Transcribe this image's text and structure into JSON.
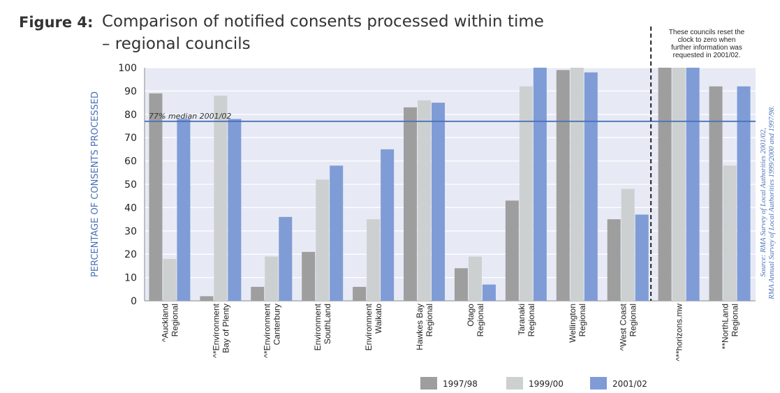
{
  "figure": {
    "label": "Figure 4:",
    "title_line1": "Comparison of notified consents processed within time",
    "title_line2": "– regional councils"
  },
  "colors": {
    "plot_bg": "#e7eaf5",
    "grid": "#ffffff",
    "s1997": "#9e9e9e",
    "s1999": "#cdd0d0",
    "s2001": "#7f9cd6",
    "median_line": "#4a72b8",
    "axis_label": "#4a72b8"
  },
  "annotation": {
    "median_label": "77% median 2001/02",
    "note_lines": [
      "These councils reset the",
      "clock to zero when",
      "further information was",
      "requested in 2001/02."
    ],
    "source_lines": [
      "Source: RMA Survey of Local Authorities 2001/02,",
      "RMA Annual Survey of Local Authorities 1999/2000 and 1997/98."
    ]
  },
  "chart_data": {
    "type": "bar",
    "title": "Comparison of notified consents processed within time – regional councils",
    "ylabel": "PERCENTAGE OF CONSENTS PROCESSED",
    "xlabel": "",
    "ylim": [
      0,
      100
    ],
    "yticks": [
      0,
      10,
      20,
      30,
      40,
      50,
      60,
      70,
      80,
      90,
      100
    ],
    "grid": true,
    "legend_position": "bottom",
    "median": 77,
    "categories": [
      [
        "^Auckland",
        "Regional"
      ],
      [
        "^*Environment",
        "Bay of Plenty"
      ],
      [
        "^*Environment",
        "Canterbury"
      ],
      [
        "Environment",
        "SouthLand"
      ],
      [
        "Environment",
        "Waikato"
      ],
      [
        "Hawkes Bay",
        "Regional"
      ],
      [
        "Otago",
        "Regional"
      ],
      [
        "Taranaki",
        "Regional"
      ],
      [
        "Wellington",
        "Regional"
      ],
      [
        "^West Coast",
        "Regional"
      ],
      [
        "^**horizons.mw"
      ],
      [
        "**NorthLand",
        "Regional"
      ]
    ],
    "series": [
      {
        "name": "1997/98",
        "values": [
          89,
          2,
          6,
          21,
          6,
          83,
          14,
          43,
          99,
          35,
          100,
          92
        ]
      },
      {
        "name": "1999/00",
        "values": [
          18,
          88,
          19,
          52,
          35,
          86,
          19,
          92,
          100,
          48,
          100,
          58
        ]
      },
      {
        "name": "2001/02",
        "values": [
          78,
          78,
          36,
          58,
          65,
          85,
          7,
          100,
          98,
          37,
          100,
          92
        ]
      }
    ]
  }
}
